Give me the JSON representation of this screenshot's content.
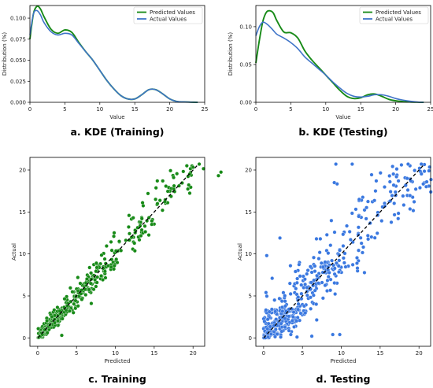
{
  "chart_data": [
    {
      "type": "line",
      "caption": "a. KDE (Training)",
      "xlabel": "Value",
      "ylabel": "Distribution (%)",
      "xlim": [
        0,
        25
      ],
      "ylim": [
        0,
        0.115
      ],
      "xticks": [
        0,
        5,
        10,
        15,
        20,
        25
      ],
      "yticks": [
        0.0,
        0.025,
        0.05,
        0.075,
        0.1
      ],
      "ytick_labels": [
        "0.000",
        "0.025",
        "0.050",
        "0.075",
        "0.100"
      ],
      "legend": "top-right",
      "series": [
        {
          "name": "Predicted Values",
          "color": "#178a17",
          "x": [
            0,
            0.5,
            1,
            1.5,
            2,
            3,
            4,
            5,
            6,
            7,
            8,
            9,
            10,
            11,
            12,
            13,
            14,
            15,
            16,
            17,
            18,
            19,
            20,
            21,
            22,
            23,
            24
          ],
          "y": [
            0.075,
            0.105,
            0.114,
            0.111,
            0.102,
            0.087,
            0.082,
            0.086,
            0.083,
            0.071,
            0.06,
            0.05,
            0.038,
            0.026,
            0.016,
            0.008,
            0.004,
            0.004,
            0.009,
            0.015,
            0.015,
            0.01,
            0.004,
            0.001,
            0.0005,
            0.0002,
            0
          ]
        },
        {
          "name": "Actual Values",
          "color": "#3f74c8",
          "x": [
            0,
            0.5,
            1,
            1.5,
            2,
            3,
            4,
            5,
            6,
            7,
            8,
            9,
            10,
            11,
            12,
            13,
            14,
            15,
            16,
            17,
            18,
            19,
            20,
            21,
            22,
            23,
            24
          ],
          "y": [
            0.08,
            0.105,
            0.109,
            0.104,
            0.095,
            0.084,
            0.08,
            0.082,
            0.08,
            0.07,
            0.06,
            0.05,
            0.038,
            0.026,
            0.016,
            0.008,
            0.004,
            0.004,
            0.009,
            0.015,
            0.015,
            0.01,
            0.004,
            0.001,
            0.0005,
            0.0002,
            0
          ]
        }
      ]
    },
    {
      "type": "line",
      "caption": "b. KDE (Testing)",
      "xlabel": "Value",
      "ylabel": "Distribution (%)",
      "xlim": [
        0,
        25
      ],
      "ylim": [
        0,
        0.128
      ],
      "xticks": [
        0,
        5,
        10,
        15,
        20,
        25
      ],
      "yticks": [
        0.0,
        0.05,
        0.1
      ],
      "ytick_labels": [
        "0.00",
        "0.05",
        "0.10"
      ],
      "legend": "top-right",
      "series": [
        {
          "name": "Predicted Values",
          "color": "#178a17",
          "x": [
            0,
            0.5,
            1,
            1.5,
            2,
            2.5,
            3,
            4,
            5,
            6,
            7,
            8,
            9,
            10,
            11,
            12,
            13,
            14,
            15,
            16,
            17,
            18,
            19,
            20,
            21,
            22,
            23,
            24
          ],
          "y": [
            0.052,
            0.082,
            0.107,
            0.119,
            0.121,
            0.118,
            0.108,
            0.093,
            0.092,
            0.085,
            0.068,
            0.056,
            0.046,
            0.036,
            0.026,
            0.016,
            0.008,
            0.005,
            0.006,
            0.01,
            0.011,
            0.008,
            0.004,
            0.002,
            0.001,
            0.0005,
            0.0002,
            0
          ]
        },
        {
          "name": "Actual Values",
          "color": "#3f74c8",
          "x": [
            0,
            0.5,
            1,
            1.5,
            2,
            2.5,
            3,
            4,
            5,
            6,
            7,
            8,
            9,
            10,
            11,
            12,
            13,
            14,
            15,
            16,
            17,
            18,
            19,
            20,
            21,
            22,
            23,
            24
          ],
          "y": [
            0.088,
            0.1,
            0.106,
            0.104,
            0.1,
            0.095,
            0.09,
            0.085,
            0.079,
            0.071,
            0.06,
            0.052,
            0.044,
            0.036,
            0.027,
            0.019,
            0.012,
            0.008,
            0.007,
            0.008,
            0.01,
            0.01,
            0.008,
            0.005,
            0.003,
            0.0015,
            0.0005,
            0
          ]
        }
      ]
    },
    {
      "type": "scatter",
      "caption": "c. Training",
      "xlabel": "Predicted",
      "ylabel": "Actual",
      "xlim": [
        -1,
        21.5
      ],
      "ylim": [
        -1,
        21.5
      ],
      "xticks": [
        0,
        5,
        10,
        15,
        20
      ],
      "yticks": [
        0,
        5,
        10,
        15,
        20
      ],
      "color": "#178a17",
      "reference_line": {
        "style": "dashed",
        "color": "#000000",
        "from": [
          0,
          0
        ],
        "to": [
          20.7,
          20.7
        ]
      },
      "spread": 0.9,
      "outliers": [
        [
          0.6,
          0.4
        ],
        [
          3.1,
          0.3
        ],
        [
          2.2,
          1.8
        ],
        [
          4.1,
          3.2
        ],
        [
          5.2,
          3.8
        ],
        [
          6.9,
          4.1
        ],
        [
          9.8,
          12.1
        ],
        [
          10.5,
          11.5
        ],
        [
          12.3,
          14.3
        ],
        [
          13.5,
          16.1
        ],
        [
          14.2,
          17.2
        ],
        [
          15.4,
          18.7
        ],
        [
          16.1,
          18.7
        ],
        [
          17.5,
          19.1
        ],
        [
          19.2,
          20.5
        ],
        [
          20.8,
          20.7
        ]
      ]
    },
    {
      "type": "scatter",
      "caption": "d. Testing",
      "xlabel": "Predicted",
      "ylabel": "Actual",
      "xlim": [
        -1,
        21.5
      ],
      "ylim": [
        -1,
        21.5
      ],
      "xticks": [
        0,
        5,
        10,
        15,
        20
      ],
      "yticks": [
        0,
        5,
        10,
        15,
        20
      ],
      "color": "#3a78e0",
      "reference_line": {
        "style": "dashed",
        "color": "#000000",
        "from": [
          0,
          0
        ],
        "to": [
          20.7,
          20.7
        ]
      },
      "spread": 2.2,
      "outliers": [
        [
          2.1,
          11.9
        ],
        [
          3.5,
          0.4
        ],
        [
          6.2,
          0.2
        ],
        [
          8.9,
          0.4
        ],
        [
          9.3,
          20.7
        ],
        [
          11.4,
          20.7
        ],
        [
          12.6,
          16.4
        ],
        [
          14.5,
          18.7
        ],
        [
          15.3,
          15.6
        ],
        [
          16.3,
          16.3
        ],
        [
          18.6,
          20.7
        ],
        [
          20.3,
          20.7
        ],
        [
          6.8,
          11.8
        ],
        [
          7.3,
          11.8
        ],
        [
          9.7,
          9.9
        ],
        [
          11.2,
          11.7
        ],
        [
          13.2,
          14.2
        ],
        [
          14.4,
          17.5
        ],
        [
          12.3,
          16.5
        ],
        [
          16.2,
          19.3
        ],
        [
          17.1,
          19.2
        ],
        [
          0.3,
          5.4
        ],
        [
          1.1,
          7.1
        ],
        [
          0.4,
          9.8
        ],
        [
          4.3,
          0.1
        ],
        [
          9.8,
          0.4
        ]
      ]
    }
  ]
}
